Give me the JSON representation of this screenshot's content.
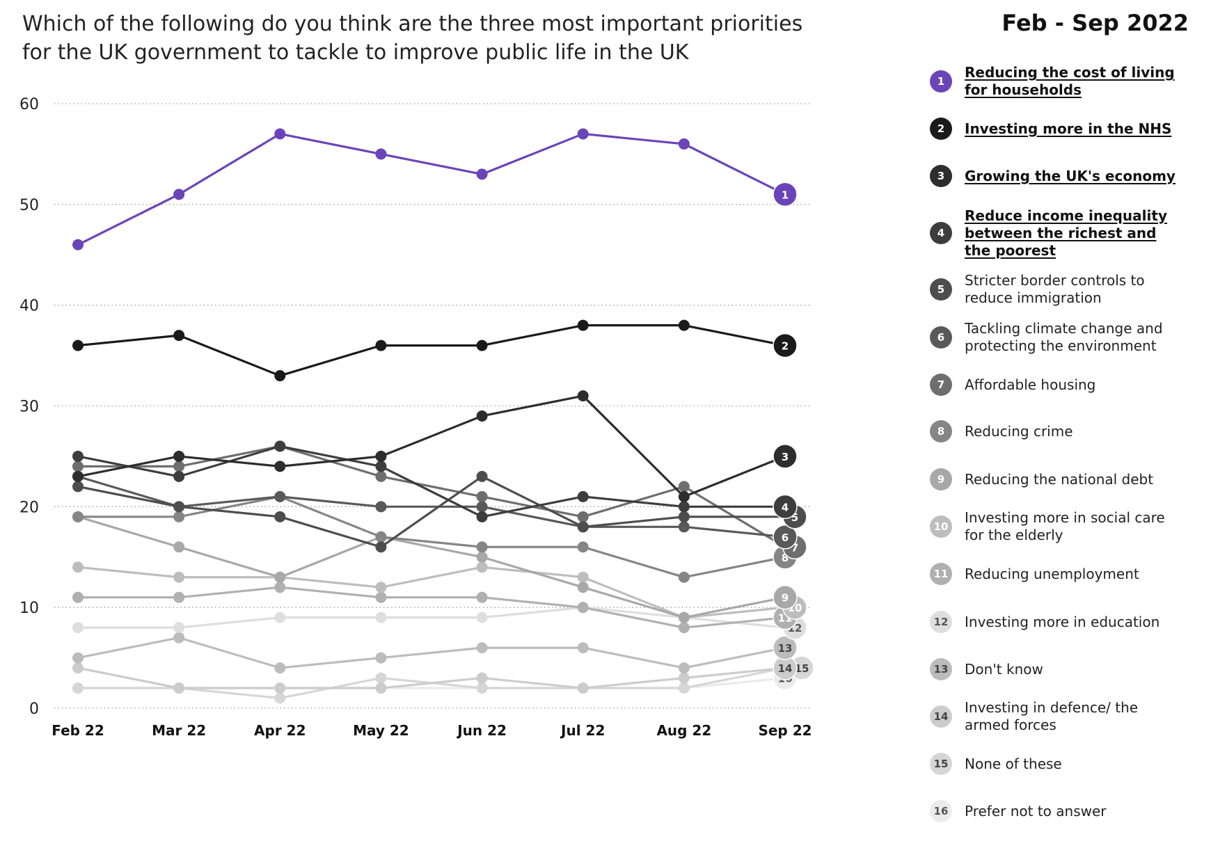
{
  "header": {
    "title_line1": "Which of the following do you think are the three most important priorities",
    "title_line2": "for the UK government to tackle to improve public life in the UK",
    "period": "Feb - Sep 2022"
  },
  "chart_data": {
    "type": "line",
    "x": [
      "Feb 22",
      "Mar 22",
      "Apr 22",
      "May 22",
      "Jun 22",
      "Jul 22",
      "Aug 22",
      "Sep 22"
    ],
    "ylim": [
      0,
      60
    ],
    "yticks": [
      0,
      10,
      20,
      30,
      40,
      50,
      60
    ],
    "grid": "horizontal dotted",
    "legend_placement": "right",
    "series": [
      {
        "rank": "1",
        "name": "Reducing the cost of living for households",
        "color": "#6a44b8",
        "label_color": "#ffffff",
        "highlight": true,
        "values": [
          46,
          51,
          57,
          55,
          53,
          57,
          56,
          51
        ]
      },
      {
        "rank": "2",
        "name": "Investing more in the NHS",
        "color": "#1a1a1a",
        "label_color": "#ffffff",
        "highlight": true,
        "values": [
          36,
          37,
          33,
          36,
          36,
          38,
          38,
          36
        ]
      },
      {
        "rank": "3",
        "name": "Growing the UK's economy",
        "color": "#2d2d2d",
        "label_color": "#ffffff",
        "highlight": true,
        "values": [
          23,
          25,
          24,
          25,
          29,
          31,
          21,
          25
        ]
      },
      {
        "rank": "4",
        "name": "Reduce income inequality between the richest and the poorest",
        "color": "#3d3d3d",
        "label_color": "#ffffff",
        "highlight": true,
        "values": [
          25,
          23,
          26,
          24,
          19,
          21,
          20,
          20
        ]
      },
      {
        "rank": "5",
        "name": "Stricter border controls to reduce immigration",
        "color": "#4d4d4d",
        "label_color": "#ffffff",
        "highlight": false,
        "values": [
          22,
          20,
          19,
          16,
          23,
          18,
          19,
          19
        ]
      },
      {
        "rank": "6",
        "name": "Tackling climate change and protecting the environment",
        "color": "#595959",
        "label_color": "#ffffff",
        "highlight": false,
        "values": [
          23,
          20,
          21,
          20,
          20,
          18,
          18,
          17
        ]
      },
      {
        "rank": "7",
        "name": "Affordable housing",
        "color": "#6e6e6e",
        "label_color": "#ffffff",
        "highlight": false,
        "values": [
          24,
          24,
          26,
          23,
          21,
          19,
          22,
          16
        ]
      },
      {
        "rank": "8",
        "name": "Reducing crime",
        "color": "#858585",
        "label_color": "#ffffff",
        "highlight": false,
        "values": [
          19,
          19,
          21,
          17,
          16,
          16,
          13,
          15
        ]
      },
      {
        "rank": "9",
        "name": "Reducing the national debt",
        "color": "#a8a8a8",
        "label_color": "#ffffff",
        "highlight": false,
        "values": [
          19,
          16,
          13,
          17,
          15,
          12,
          9,
          11
        ]
      },
      {
        "rank": "10",
        "name": "Investing more in social care for the elderly",
        "color": "#bdbdbd",
        "label_color": "#ffffff",
        "highlight": false,
        "values": [
          14,
          13,
          13,
          12,
          14,
          13,
          9,
          10
        ]
      },
      {
        "rank": "11",
        "name": "Reducing unemployment",
        "color": "#b0b0b0",
        "label_color": "#ffffff",
        "highlight": false,
        "values": [
          11,
          11,
          12,
          11,
          11,
          10,
          8,
          9
        ]
      },
      {
        "rank": "12",
        "name": "Investing more in education",
        "color": "#dedede",
        "label_color": "#555555",
        "highlight": false,
        "values": [
          8,
          8,
          9,
          9,
          9,
          10,
          9,
          8
        ]
      },
      {
        "rank": "13",
        "name": "Don't know",
        "color": "#bcbcbc",
        "label_color": "#444444",
        "highlight": false,
        "values": [
          5,
          7,
          4,
          5,
          6,
          6,
          4,
          6
        ]
      },
      {
        "rank": "14",
        "name": "Investing in defence/ the armed forces",
        "color": "#cccccc",
        "label_color": "#444444",
        "highlight": false,
        "values": [
          4,
          2,
          2,
          2,
          3,
          2,
          3,
          4
        ]
      },
      {
        "rank": "15",
        "name": "None of these",
        "color": "#d6d6d6",
        "label_color": "#444444",
        "highlight": false,
        "values": [
          2,
          2,
          1,
          3,
          2,
          2,
          2,
          4
        ]
      },
      {
        "rank": "16",
        "name": "Prefer not to answer",
        "color": "#ebebeb",
        "label_color": "#555555",
        "highlight": false,
        "values": [
          2,
          2,
          2,
          2,
          2,
          2,
          2,
          3
        ]
      }
    ]
  }
}
